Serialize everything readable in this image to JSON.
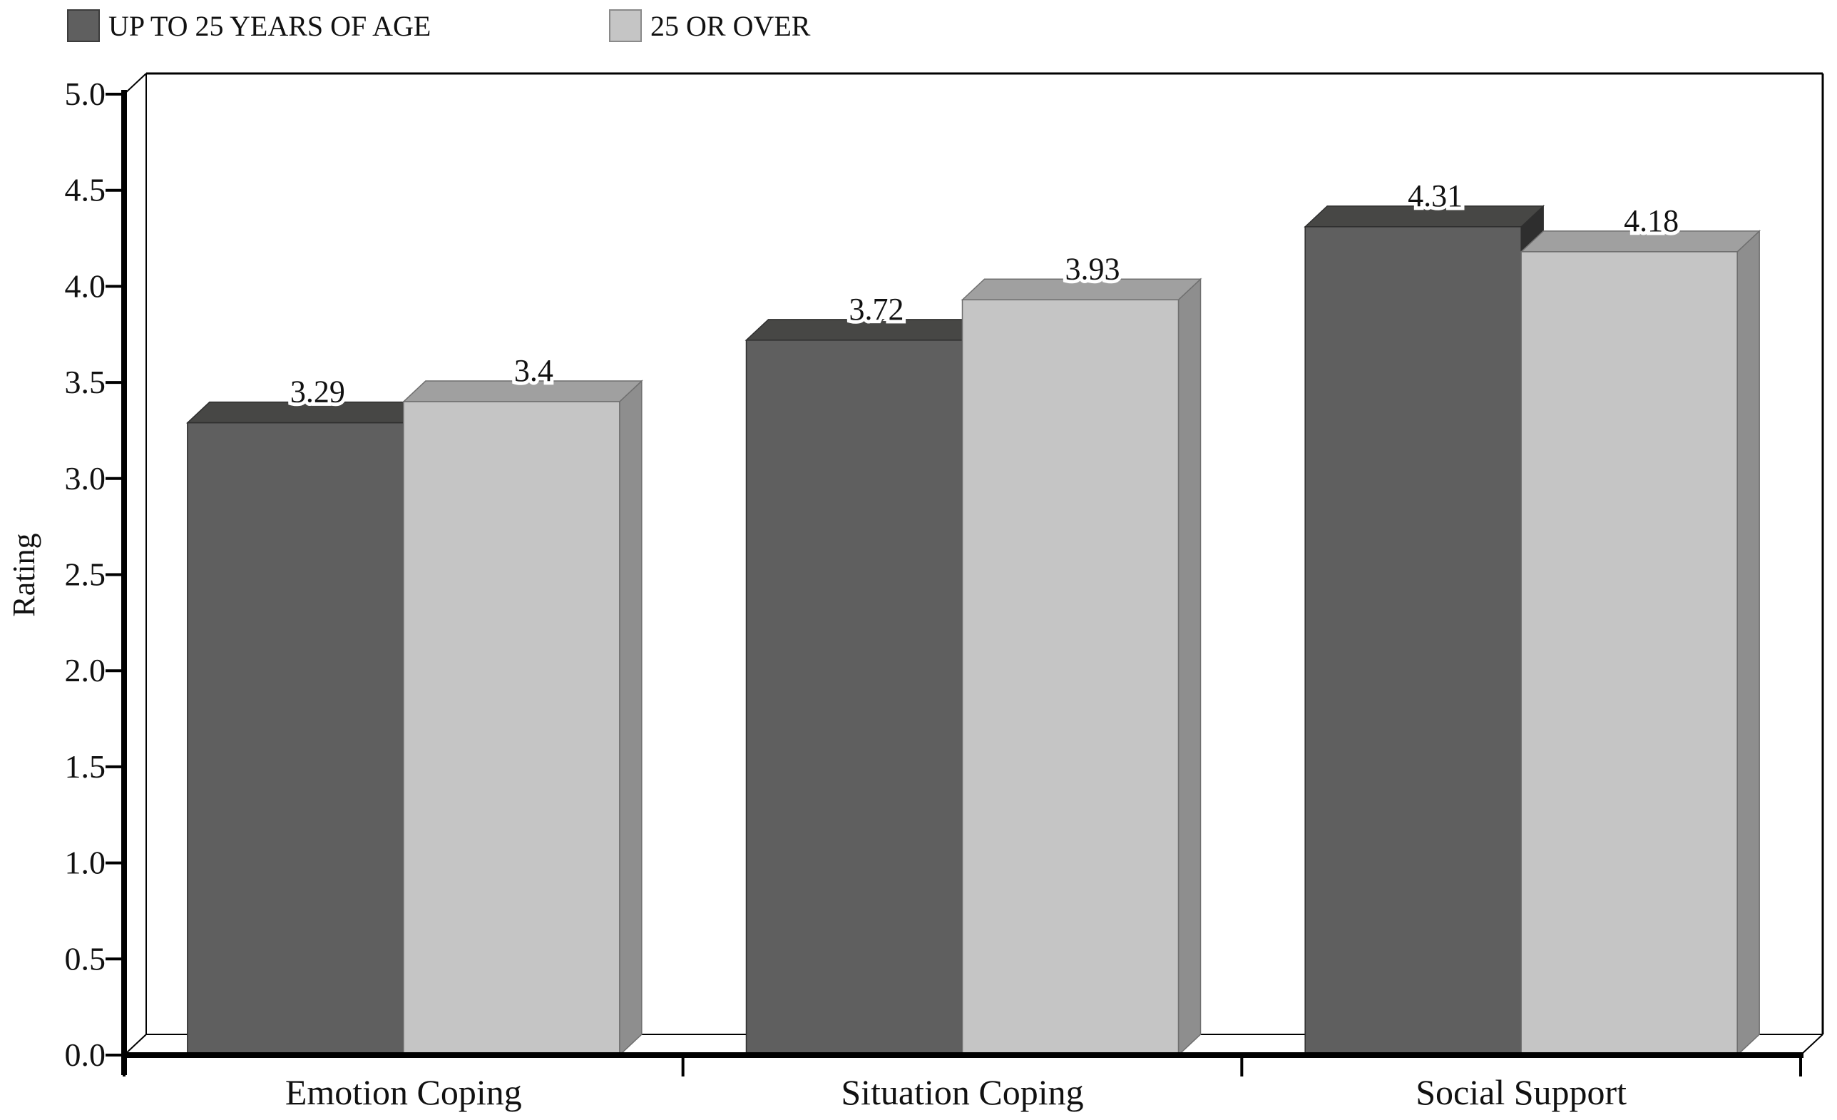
{
  "legend": {
    "items": [
      {
        "label": "UP TO 25 YEARS OF AGE",
        "swatch_color": "#5f5f5f",
        "swatch_border": "#3c3c3c"
      },
      {
        "label": "25 OR OVER",
        "swatch_color": "#c5c5c5",
        "swatch_border": "#8a8a8a"
      }
    ]
  },
  "chart_data": {
    "type": "bar",
    "style": "3d",
    "categories": [
      "Emotion Coping",
      "Situation Coping",
      "Social Support"
    ],
    "series": [
      {
        "name": "UP TO 25 YEARS OF AGE",
        "values": [
          3.29,
          3.72,
          4.31
        ],
        "labels": [
          "3.29",
          "3.72",
          "4.31"
        ],
        "front_color": "#5f5f5f",
        "top_color": "#474745",
        "side_color": "#2e2e2e",
        "stroke_color": "#2f2f2f"
      },
      {
        "name": "25 OR OVER",
        "values": [
          3.4,
          3.93,
          4.18
        ],
        "labels": [
          "3.4",
          "3.93",
          "4.18"
        ],
        "front_color": "#c5c5c5",
        "top_color": "#a0a0a0",
        "side_color": "#8e8e8e",
        "stroke_color": "#6f6f6f"
      }
    ],
    "title": "",
    "xlabel": "",
    "ylabel": "Rating",
    "ylim": [
      0,
      5
    ],
    "y_ticks": [
      "0.0",
      "0.5",
      "1.0",
      "1.5",
      "2.0",
      "2.5",
      "3.0",
      "3.5",
      "4.0",
      "4.5",
      "5.0"
    ],
    "grid": false,
    "legend_position": "top-left",
    "axis_color": "#000000"
  }
}
